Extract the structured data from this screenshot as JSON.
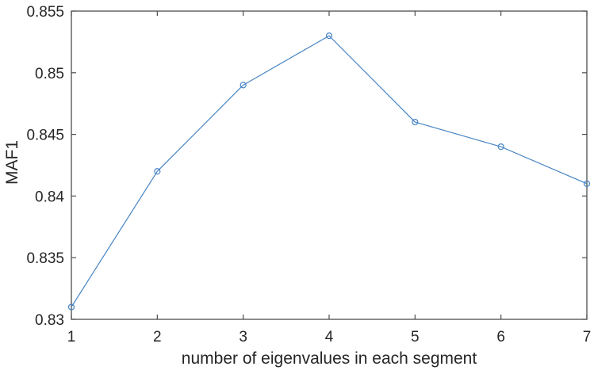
{
  "figure": {
    "xlabel": "number of eigenvalues in each segment",
    "ylabel": "MAF1"
  },
  "chart_data": {
    "type": "line",
    "title": "",
    "xlabel": "number of eigenvalues in each segment",
    "ylabel": "MAF1",
    "x": [
      1,
      2,
      3,
      4,
      5,
      6,
      7
    ],
    "series": [
      {
        "name": "MAF1",
        "values": [
          0.831,
          0.842,
          0.849,
          0.853,
          0.846,
          0.844,
          0.841
        ]
      }
    ],
    "xlim": [
      1,
      7
    ],
    "ylim": [
      0.83,
      0.855
    ],
    "xticks": [
      1,
      2,
      3,
      4,
      5,
      6,
      7
    ],
    "xtick_labels": [
      "1",
      "2",
      "3",
      "4",
      "5",
      "6",
      "7"
    ],
    "yticks": [
      0.83,
      0.835,
      0.84,
      0.845,
      0.85,
      0.855
    ],
    "ytick_labels": [
      "0.83",
      "0.835",
      "0.84",
      "0.845",
      "0.85",
      "0.855"
    ],
    "grid": false,
    "box": true,
    "legend": "none",
    "marker": "open-circle",
    "line_color": "#4684c4",
    "axis_color": "#4d4d4d",
    "text_color": "#262626",
    "background": "#ffffff"
  }
}
